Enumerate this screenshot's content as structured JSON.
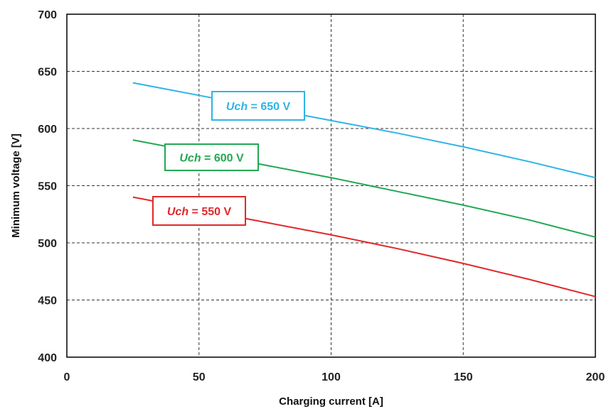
{
  "chart_data": {
    "type": "line",
    "title": "",
    "xlabel": "Charging current [A]",
    "ylabel": "Minimum voltage [V]",
    "xlim": [
      0,
      200
    ],
    "ylim": [
      400,
      700
    ],
    "x_ticks": [
      0,
      50,
      100,
      150,
      200
    ],
    "y_ticks": [
      400,
      450,
      500,
      550,
      600,
      650,
      700
    ],
    "grid": true,
    "legend": "none",
    "series": [
      {
        "label_var": "Uch",
        "label_rest": " = 650 V",
        "color": "#2EB4E6",
        "x": [
          25,
          50,
          75,
          100,
          125,
          150,
          175,
          200
        ],
        "y": [
          640,
          629,
          618,
          607,
          596,
          584,
          571,
          557
        ]
      },
      {
        "label_var": "Uch",
        "label_rest": " = 600 V",
        "color": "#22A852",
        "x": [
          25,
          50,
          75,
          100,
          125,
          150,
          175,
          200
        ],
        "y": [
          590,
          579,
          568,
          557,
          545,
          533,
          520,
          505
        ]
      },
      {
        "label_var": "Uch",
        "label_rest": " = 550 V",
        "color": "#E02828",
        "x": [
          25,
          50,
          75,
          100,
          125,
          150,
          175,
          200
        ],
        "y": [
          540,
          529,
          518,
          507,
          495,
          482,
          468,
          453
        ]
      }
    ]
  }
}
